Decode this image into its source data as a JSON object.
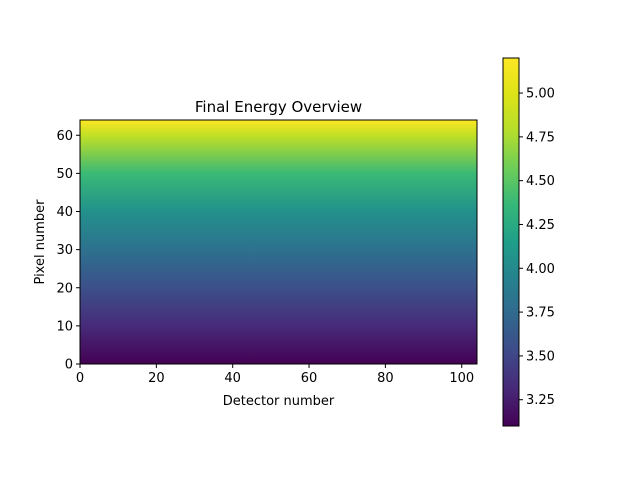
{
  "chart_data": {
    "type": "heatmap",
    "title": "Final Energy Overview",
    "xlabel": "Detector number",
    "ylabel": "Pixel number",
    "xlim": [
      0,
      104
    ],
    "ylim": [
      0,
      64
    ],
    "x_ticks": [
      0,
      20,
      40,
      60,
      80,
      100
    ],
    "y_ticks": [
      0,
      10,
      20,
      30,
      40,
      50,
      60
    ],
    "colormap": "viridis",
    "colorbar": {
      "vmin": 3.1,
      "vmax": 5.2,
      "ticks": [
        "3.25",
        "3.50",
        "3.75",
        "4.00",
        "4.25",
        "4.50",
        "4.75",
        "5.00"
      ]
    },
    "value_profile_by_pixel": [
      [
        0,
        3.1
      ],
      [
        10,
        3.33
      ],
      [
        20,
        3.56
      ],
      [
        30,
        3.8
      ],
      [
        40,
        4.05
      ],
      [
        50,
        4.38
      ],
      [
        60,
        4.85
      ],
      [
        64,
        5.2
      ]
    ],
    "variation_along_detector": "none (constant across detectors)"
  }
}
